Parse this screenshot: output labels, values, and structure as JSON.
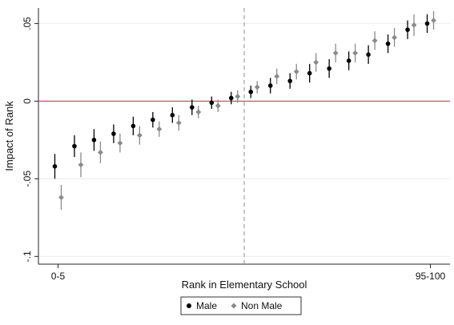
{
  "chart_data": {
    "type": "scatter",
    "title": "",
    "xlabel": "Rank in Elementary School",
    "ylabel": "Impact of Rank",
    "x_tick_labels": [
      "0-5",
      "95-100"
    ],
    "x_tick_positions": [
      1,
      20
    ],
    "xlim": [
      0,
      21
    ],
    "ylim": [
      -0.105,
      0.06
    ],
    "y_ticks": [
      {
        "value": 0.05,
        "label": ".05"
      },
      {
        "value": 0,
        "label": "0"
      },
      {
        "value": -0.05,
        "label": "-.05"
      },
      {
        "value": -0.1,
        "label": "-.1"
      }
    ],
    "reference_lines": {
      "horizontal_y": 0,
      "horizontal_color": "#d94a6a",
      "vertical_x": 10.5
    },
    "grid": "horizontal",
    "legend_position": "bottom-center",
    "series": [
      {
        "name": "Male",
        "color": "#000000",
        "x": [
          1,
          2,
          3,
          4,
          5,
          6,
          7,
          8,
          9,
          10,
          11,
          12,
          13,
          14,
          15,
          16,
          17,
          18,
          19,
          20
        ],
        "y": [
          -0.042,
          -0.029,
          -0.025,
          -0.021,
          -0.016,
          -0.012,
          -0.009,
          -0.004,
          -0.001,
          0.002,
          0.006,
          0.01,
          0.013,
          0.018,
          0.021,
          0.026,
          0.03,
          0.037,
          0.046,
          0.05
        ],
        "ci_low": [
          -0.05,
          -0.036,
          -0.032,
          -0.027,
          -0.022,
          -0.017,
          -0.014,
          -0.009,
          -0.005,
          -0.002,
          0.002,
          0.005,
          0.008,
          0.012,
          0.015,
          0.02,
          0.024,
          0.031,
          0.04,
          0.044
        ],
        "ci_high": [
          -0.034,
          -0.022,
          -0.018,
          -0.015,
          -0.01,
          -0.007,
          -0.004,
          0.001,
          0.003,
          0.006,
          0.01,
          0.015,
          0.018,
          0.024,
          0.027,
          0.032,
          0.036,
          0.043,
          0.052,
          0.056
        ]
      },
      {
        "name": "Non Male",
        "color": "#8a8a8a",
        "x": [
          1,
          2,
          3,
          4,
          5,
          6,
          7,
          8,
          9,
          10,
          11,
          12,
          13,
          14,
          15,
          16,
          17,
          18,
          19,
          20
        ],
        "y": [
          -0.062,
          -0.041,
          -0.033,
          -0.027,
          -0.022,
          -0.018,
          -0.014,
          -0.007,
          -0.003,
          0.003,
          0.009,
          0.016,
          0.019,
          0.025,
          0.031,
          0.031,
          0.039,
          0.041,
          0.049,
          0.052
        ],
        "ci_low": [
          -0.07,
          -0.049,
          -0.04,
          -0.033,
          -0.028,
          -0.023,
          -0.019,
          -0.011,
          -0.007,
          -0.001,
          0.005,
          0.011,
          0.014,
          0.019,
          0.025,
          0.025,
          0.033,
          0.035,
          0.042,
          0.046
        ],
        "ci_high": [
          -0.054,
          -0.033,
          -0.026,
          -0.021,
          -0.016,
          -0.013,
          -0.009,
          -0.003,
          0.001,
          0.007,
          0.013,
          0.021,
          0.024,
          0.031,
          0.037,
          0.037,
          0.045,
          0.047,
          0.056,
          0.058
        ]
      }
    ]
  }
}
